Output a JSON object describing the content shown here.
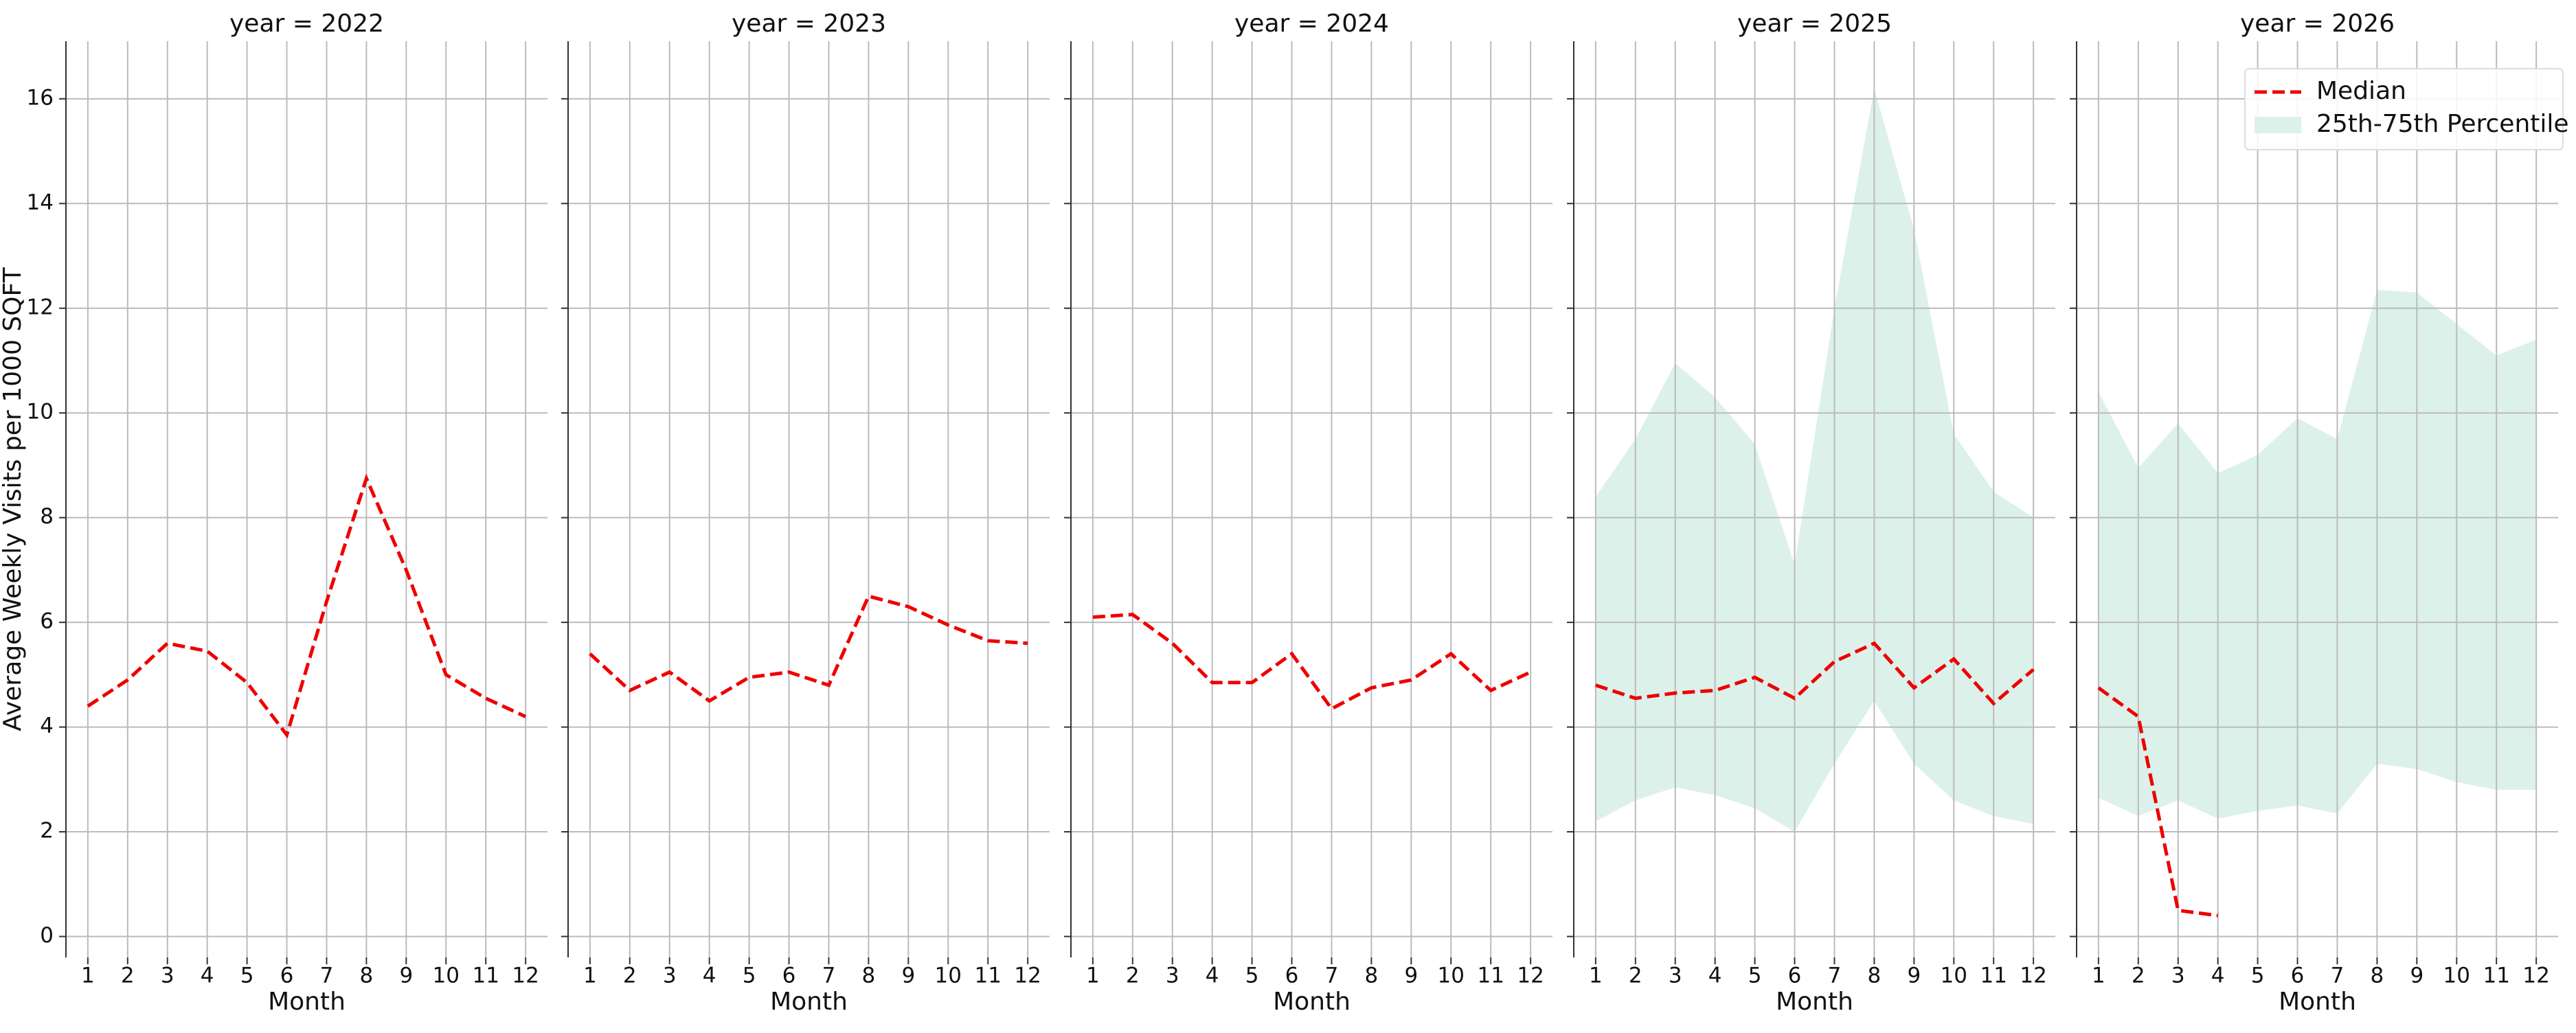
{
  "chart_data": [
    {
      "type": "line",
      "title": "year = 2022",
      "xlabel": "Month",
      "ylabel": "Average Weekly Visits per 1000 SQFT",
      "x": [
        1,
        2,
        3,
        4,
        5,
        6,
        7,
        8,
        9,
        10,
        11,
        12
      ],
      "xticks": [
        1,
        2,
        3,
        4,
        5,
        6,
        7,
        8,
        9,
        10,
        11,
        12
      ],
      "xlim": [
        0.45,
        12.55
      ],
      "ylim": [
        -0.4,
        17.1
      ],
      "yticks": [
        0,
        2,
        4,
        6,
        8,
        10,
        12,
        14,
        16
      ],
      "grid": true,
      "series": [
        {
          "color": "#ee0000",
          "values": [
            4.4,
            4.9,
            5.6,
            5.45,
            4.85,
            3.85,
            6.4,
            8.75,
            7.0,
            5.0,
            4.55,
            4.2
          ]
        }
      ]
    },
    {
      "type": "line",
      "title": "year = 2023",
      "xlabel": "Month",
      "x": [
        1,
        2,
        3,
        4,
        5,
        6,
        7,
        8,
        9,
        10,
        11,
        12
      ],
      "xticks": [
        1,
        2,
        3,
        4,
        5,
        6,
        7,
        8,
        9,
        10,
        11,
        12
      ],
      "xlim": [
        0.45,
        12.55
      ],
      "ylim": [
        -0.4,
        17.1
      ],
      "yticks": [
        0,
        2,
        4,
        6,
        8,
        10,
        12,
        14,
        16
      ],
      "grid": true,
      "series": [
        {
          "color": "#ee0000",
          "values": [
            5.4,
            4.7,
            5.05,
            4.5,
            4.95,
            5.05,
            4.8,
            6.5,
            6.3,
            5.95,
            5.65,
            5.6
          ]
        }
      ]
    },
    {
      "type": "line",
      "title": "year = 2024",
      "xlabel": "Month",
      "x": [
        1,
        2,
        3,
        4,
        5,
        6,
        7,
        8,
        9,
        10,
        11,
        12
      ],
      "xticks": [
        1,
        2,
        3,
        4,
        5,
        6,
        7,
        8,
        9,
        10,
        11,
        12
      ],
      "xlim": [
        0.45,
        12.55
      ],
      "ylim": [
        -0.4,
        17.1
      ],
      "yticks": [
        0,
        2,
        4,
        6,
        8,
        10,
        12,
        14,
        16
      ],
      "grid": true,
      "series": [
        {
          "color": "#ee0000",
          "values": [
            6.1,
            6.15,
            5.6,
            4.85,
            4.85,
            5.4,
            4.35,
            4.75,
            4.9,
            5.4,
            4.7,
            5.05
          ]
        }
      ]
    },
    {
      "type": "line",
      "title": "year = 2025",
      "xlabel": "Month",
      "x": [
        1,
        2,
        3,
        4,
        5,
        6,
        7,
        8,
        9,
        10,
        11,
        12
      ],
      "xticks": [
        1,
        2,
        3,
        4,
        5,
        6,
        7,
        8,
        9,
        10,
        11,
        12
      ],
      "xlim": [
        0.45,
        12.55
      ],
      "ylim": [
        -0.4,
        17.1
      ],
      "yticks": [
        0,
        2,
        4,
        6,
        8,
        10,
        12,
        14,
        16
      ],
      "grid": true,
      "bands": [
        {
          "color": "#dcf1ea",
          "lower": [
            2.2,
            2.6,
            2.85,
            2.7,
            2.45,
            2.0,
            3.3,
            4.5,
            3.3,
            2.6,
            2.3,
            2.15
          ],
          "upper": [
            8.4,
            9.5,
            10.95,
            10.3,
            9.4,
            7.1,
            12.0,
            16.2,
            13.5,
            9.6,
            8.5,
            8.0
          ]
        }
      ],
      "series": [
        {
          "color": "#ee0000",
          "values": [
            4.8,
            4.55,
            4.65,
            4.7,
            4.95,
            4.55,
            5.25,
            5.6,
            4.75,
            5.3,
            4.45,
            5.1
          ]
        }
      ]
    },
    {
      "type": "line",
      "title": "year = 2026",
      "xlabel": "Month",
      "x": [
        1,
        2,
        3,
        4,
        5,
        6,
        7,
        8,
        9,
        10,
        11,
        12
      ],
      "xticks": [
        1,
        2,
        3,
        4,
        5,
        6,
        7,
        8,
        9,
        10,
        11,
        12
      ],
      "xlim": [
        0.45,
        12.55
      ],
      "ylim": [
        -0.4,
        17.1
      ],
      "yticks": [
        0,
        2,
        4,
        6,
        8,
        10,
        12,
        14,
        16
      ],
      "grid": true,
      "legend": "upper right",
      "bands": [
        {
          "name": "25th-75th Percentile",
          "color": "#dcf1ea",
          "lower": [
            2.65,
            2.3,
            2.6,
            2.25,
            2.4,
            2.5,
            2.35,
            3.3,
            3.2,
            2.95,
            2.8,
            2.8
          ],
          "upper": [
            10.4,
            8.95,
            9.8,
            8.85,
            9.2,
            9.9,
            9.5,
            12.35,
            12.3,
            11.7,
            11.1,
            11.4
          ]
        }
      ],
      "series": [
        {
          "name": "Median",
          "color": "#ee0000",
          "values": [
            4.75,
            4.2,
            0.5,
            0.4,
            null,
            null,
            null,
            null,
            null,
            null,
            null,
            null
          ]
        }
      ]
    }
  ]
}
